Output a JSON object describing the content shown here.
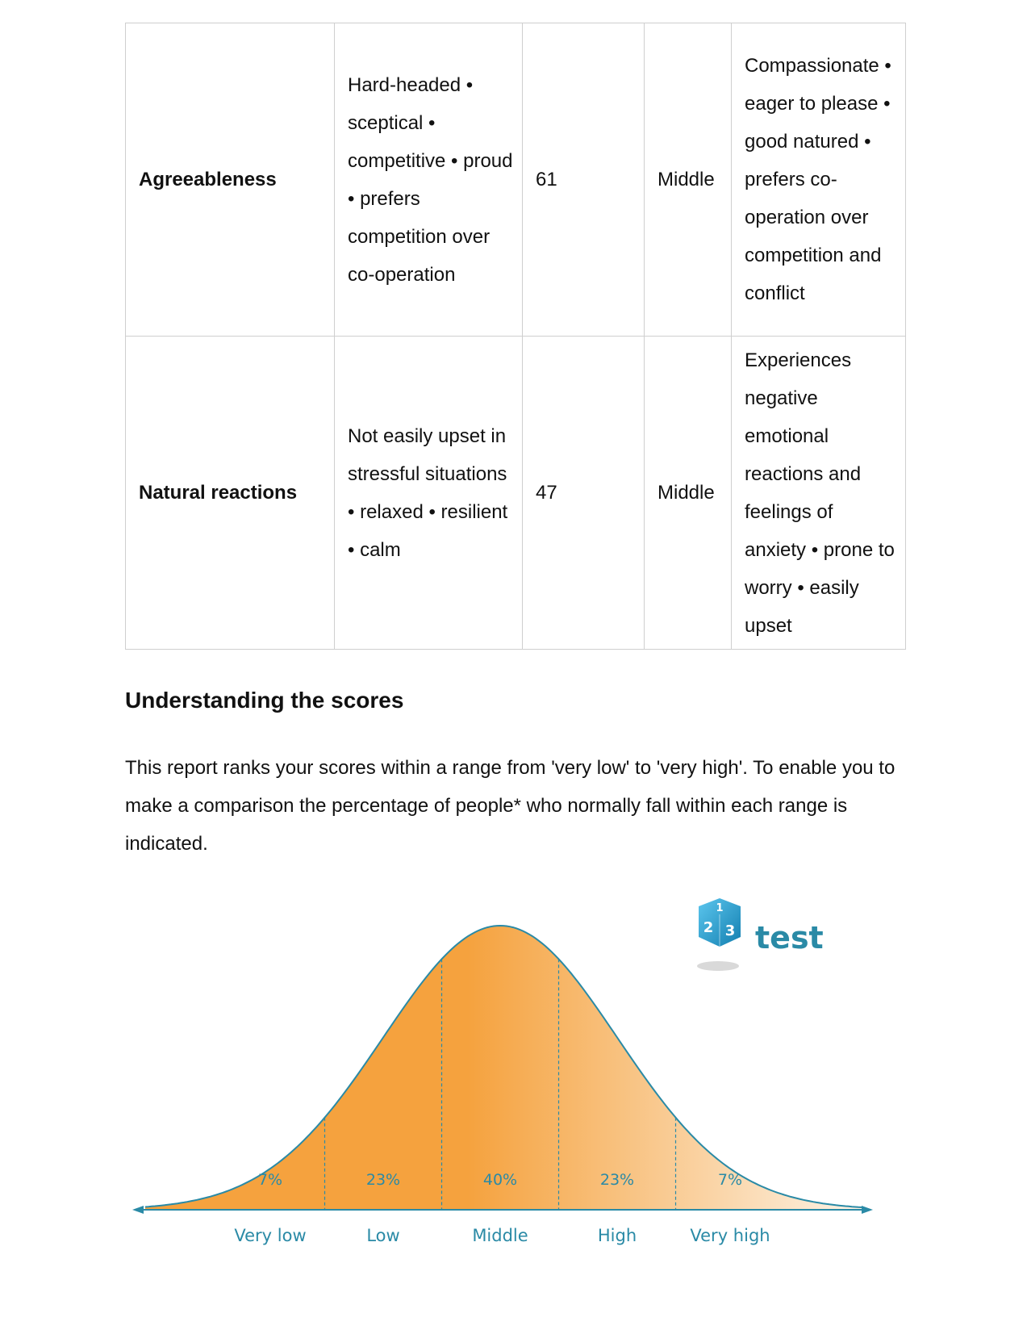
{
  "table": {
    "rows": [
      {
        "trait": "Agreeableness",
        "low_description": "Hard-headed • sceptical • competitive • proud • prefers competition over co-operation",
        "score": "61",
        "band": "Middle",
        "high_description": "Compassionate • eager to please • good natured • prefers co-operation over competition and conflict"
      },
      {
        "trait": "Natural reactions",
        "low_description": "Not easily upset in stressful situations • relaxed • resilient • calm",
        "score": "47",
        "band": "Middle",
        "high_description": "Experiences negative emotional reactions and feelings of anxiety • prone to worry • easily upset"
      }
    ]
  },
  "section": {
    "heading": "Understanding the scores",
    "intro": "This report ranks your scores within a range from 'very low' to 'very high'. To enable you to make a comparison the percentage of people* who normally fall within each range is indicated."
  },
  "distribution": {
    "logo_text": "test",
    "logo_dice_numbers": [
      "1",
      "2",
      "3"
    ],
    "bands": [
      {
        "label": "Very low",
        "percent": "7%"
      },
      {
        "label": "Low",
        "percent": "23%"
      },
      {
        "label": "Middle",
        "percent": "40%"
      },
      {
        "label": "High",
        "percent": "23%"
      },
      {
        "label": "Very high",
        "percent": "7%"
      }
    ],
    "colors": {
      "curve": "#2a8aa6",
      "fill_strong": "#f5a23e",
      "fill_light": "#fdf3e6",
      "label": "#2a8aa6",
      "logo_blue": "#1f9fd0"
    }
  }
}
